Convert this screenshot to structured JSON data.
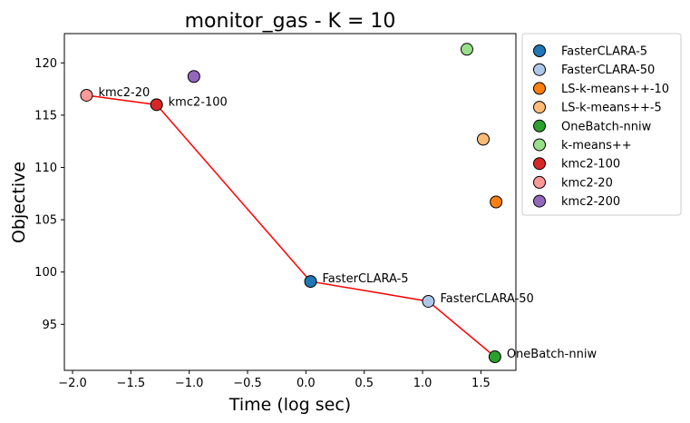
{
  "chart_data": {
    "type": "scatter",
    "title": "monitor_gas - K = 10",
    "xlabel": "Time (log sec)",
    "ylabel": "Objective",
    "xlim": [
      -2.07,
      1.8
    ],
    "ylim": [
      90.6,
      122.8
    ],
    "xticks": [
      -2.0,
      -1.5,
      -1.0,
      -0.5,
      0.0,
      0.5,
      1.0,
      1.5
    ],
    "xtick_labels": [
      "−2.0",
      "−1.5",
      "−1.0",
      "−0.5",
      "0.0",
      "0.5",
      "1.0",
      "1.5"
    ],
    "yticks": [
      95,
      100,
      105,
      110,
      115,
      120
    ],
    "ytick_labels": [
      "95",
      "100",
      "105",
      "110",
      "115",
      "120"
    ],
    "grid": false,
    "legend_position": "outside-right",
    "series": [
      {
        "name": "FasterCLARA-5",
        "color": "#1f77b4",
        "x": 0.04,
        "y": 99.1,
        "annotation": "FasterCLARA-5"
      },
      {
        "name": "FasterCLARA-50",
        "color": "#aec7e8",
        "x": 1.05,
        "y": 97.2,
        "annotation": "FasterCLARA-50"
      },
      {
        "name": "LS-k-means++-10",
        "color": "#ff7f0e",
        "x": 1.63,
        "y": 106.7,
        "annotation": ""
      },
      {
        "name": "LS-k-means++-5",
        "color": "#ffbb78",
        "x": 1.52,
        "y": 112.7,
        "annotation": ""
      },
      {
        "name": "OneBatch-nniw",
        "color": "#2ca02c",
        "x": 1.62,
        "y": 91.9,
        "annotation": "OneBatch-nniw"
      },
      {
        "name": "k-means++",
        "color": "#98df8a",
        "x": 1.38,
        "y": 121.3,
        "annotation": ""
      },
      {
        "name": "kmc2-100",
        "color": "#d62728",
        "x": -1.28,
        "y": 116.0,
        "annotation": "kmc2-100"
      },
      {
        "name": "kmc2-20",
        "color": "#ff9896",
        "x": -1.88,
        "y": 116.9,
        "annotation": "kmc2-20"
      },
      {
        "name": "kmc2-200",
        "color": "#9467bd",
        "x": -0.96,
        "y": 118.7,
        "annotation": ""
      }
    ],
    "pareto_front": {
      "color": "#ff0000",
      "points": [
        {
          "x": -1.88,
          "y": 116.9
        },
        {
          "x": -1.28,
          "y": 116.0
        },
        {
          "x": 0.04,
          "y": 99.1
        },
        {
          "x": 1.05,
          "y": 97.2
        },
        {
          "x": 1.62,
          "y": 91.9
        }
      ]
    }
  }
}
